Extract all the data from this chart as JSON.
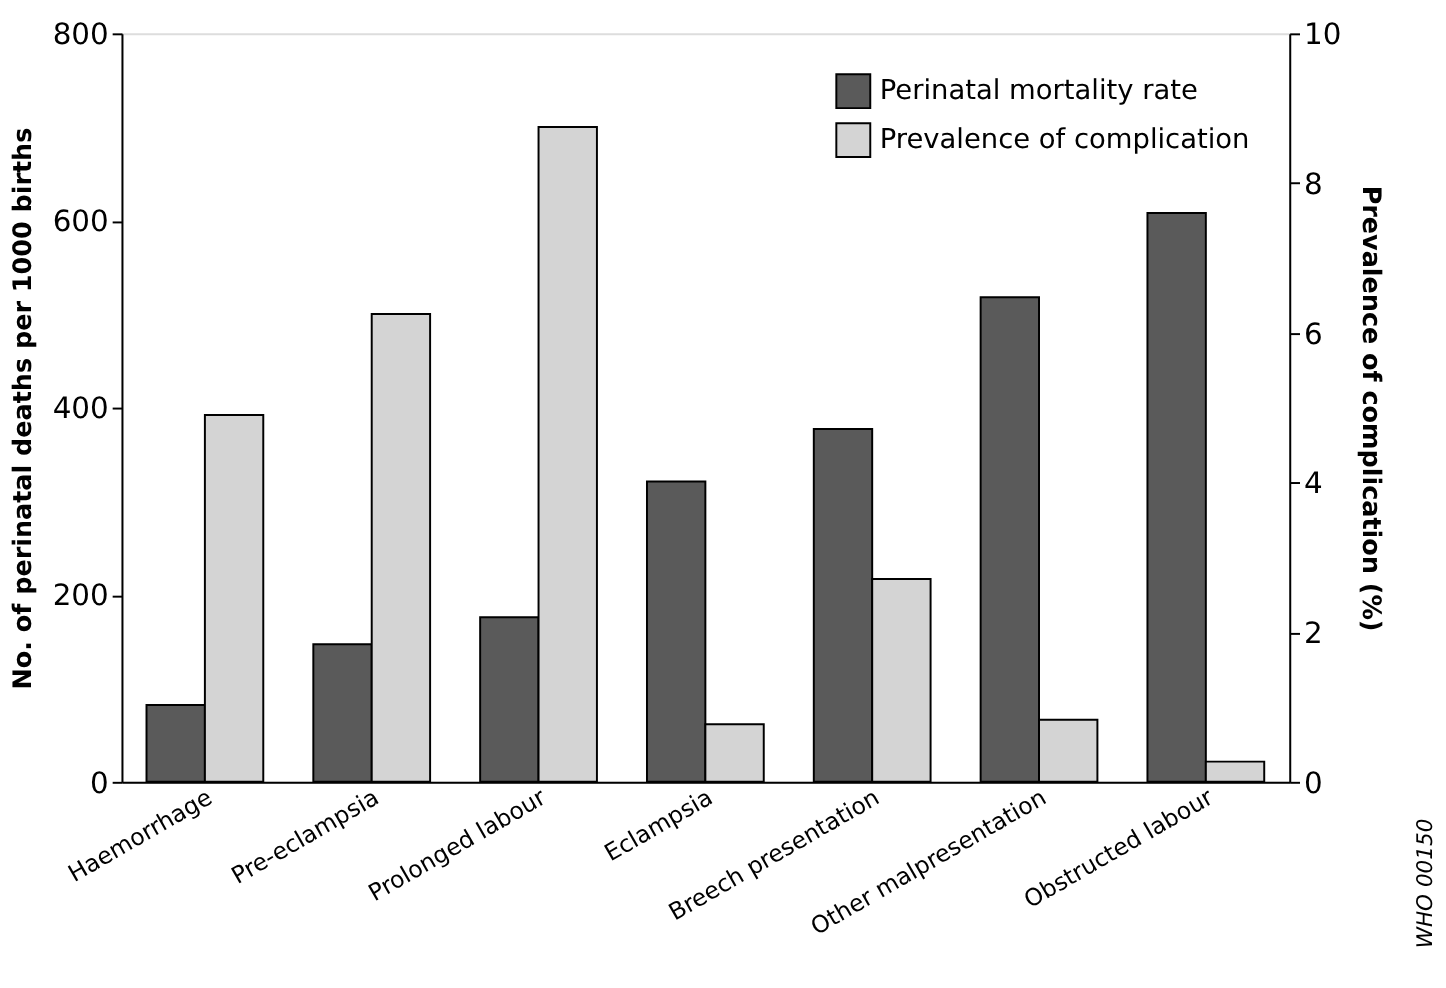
{
  "chart_data": {
    "type": "bar",
    "categories": [
      "Haemorrhage",
      "Pre-eclampsia",
      "Prolonged labour",
      "Eclampsia",
      "Breech presentation",
      "Other malpresentation",
      "Obstructed labour"
    ],
    "series": [
      {
        "name": "Perinatal mortality rate",
        "color": "#5a5a5a",
        "axis": "y",
        "values": [
          82,
          147,
          176,
          321,
          377,
          518,
          608
        ]
      },
      {
        "name": "Prevalence of complication",
        "color": "#d4d4d4",
        "axis": "y2",
        "values": [
          4.9,
          6.25,
          8.75,
          0.77,
          2.71,
          0.83,
          0.27
        ]
      }
    ],
    "ylabel": "No. of perinatal deaths per 1000 births",
    "y2label": "Prevalence of complication (%)",
    "ylim": [
      0,
      800
    ],
    "yticks": [
      0,
      200,
      400,
      600,
      800
    ],
    "y2lim": [
      0,
      10
    ],
    "y2ticks": [
      0,
      2,
      4,
      6,
      8,
      10
    ],
    "legend": "top right",
    "grid": false,
    "annotations": [
      "WHO 00150"
    ]
  }
}
